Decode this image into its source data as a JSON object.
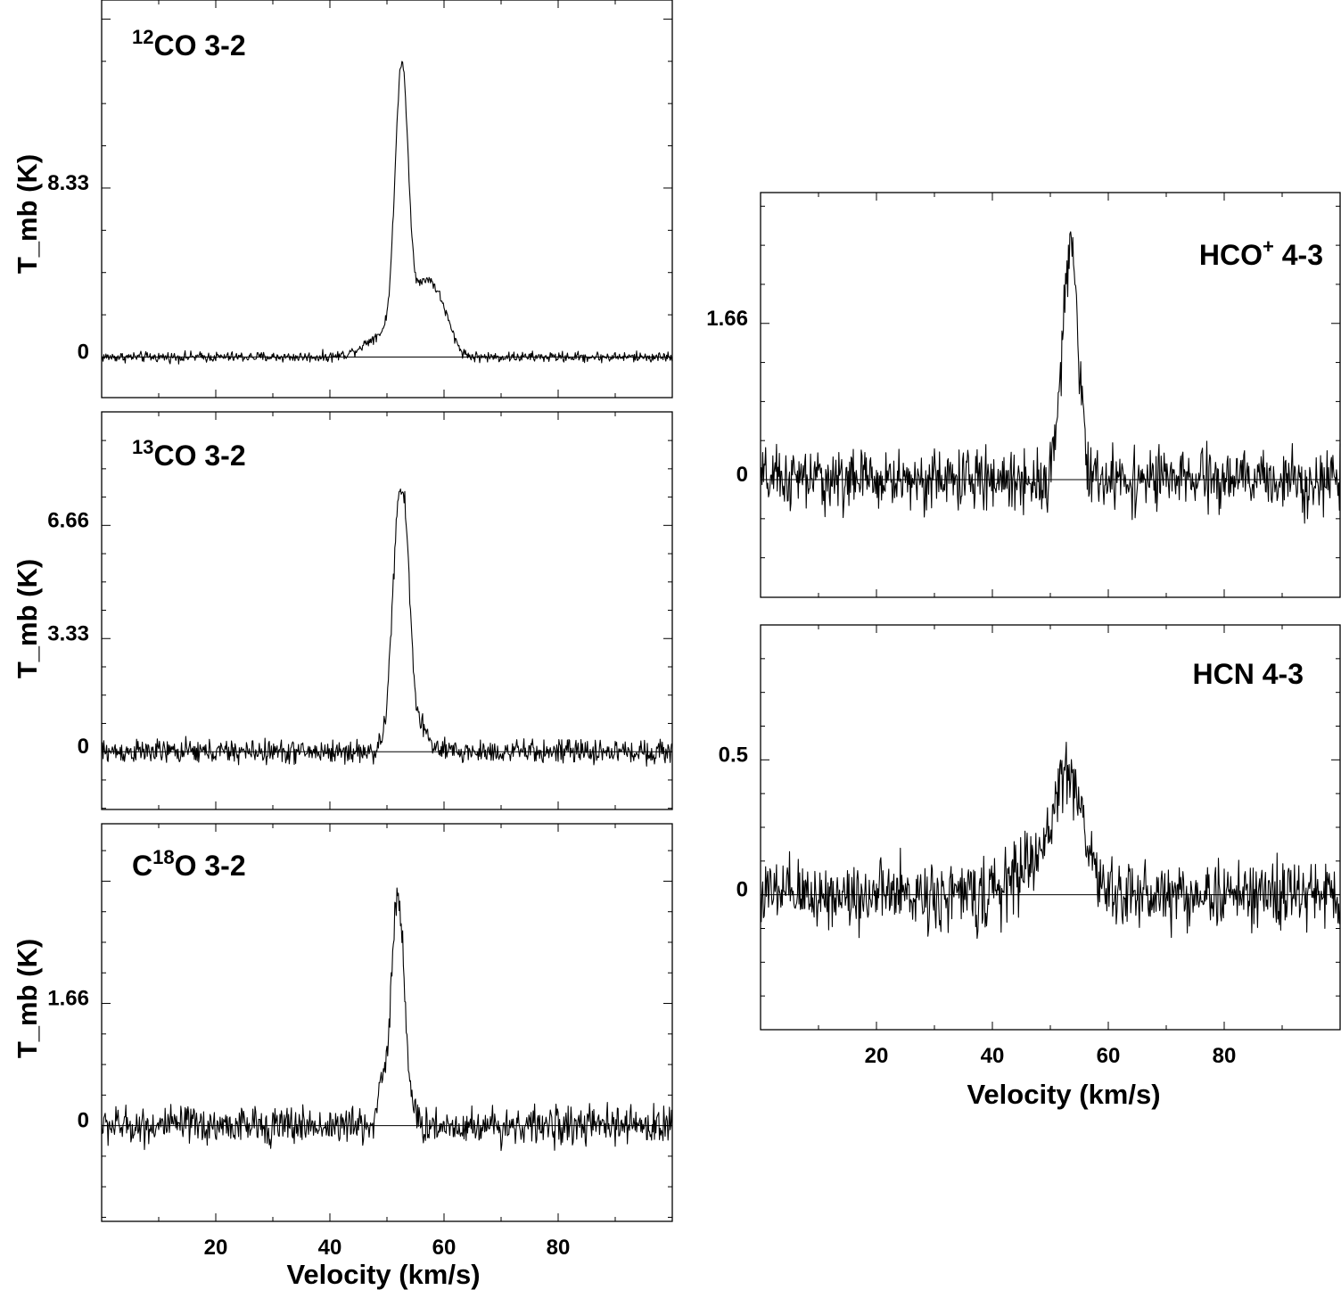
{
  "chart_data": [
    {
      "type": "line",
      "panel_label": {
        "prefix": "",
        "sup": "12",
        "main": "CO 3-2"
      },
      "ylabel": "T_mb (K)",
      "xlabel": "",
      "xlim": [
        0,
        100
      ],
      "ylim": [
        -2.0,
        17.6
      ],
      "y_ticks": [
        0,
        8.33
      ],
      "y_tick_labels": [
        "0",
        "8.33"
      ],
      "x_ticks": [
        20,
        40,
        60,
        80
      ],
      "x_tick_labels": [
        "",
        "",
        "",
        ""
      ],
      "noise": 0.22,
      "components": [
        {
          "center": 52.6,
          "sigma": 1.15,
          "amp": 13.5
        },
        {
          "center": 56.2,
          "sigma": 1.6,
          "amp": 2.4
        },
        {
          "center": 59.0,
          "sigma": 2.0,
          "amp": 2.6
        },
        {
          "center": 50.0,
          "sigma": 3.5,
          "amp": 1.2
        }
      ],
      "series": [
        {
          "x_range": [
            0,
            100
          ],
          "peak_velocity": 52.6,
          "peak_intensity": 13.5
        }
      ]
    },
    {
      "type": "line",
      "panel_label": {
        "prefix": "",
        "sup": "13",
        "main": "CO 3-2"
      },
      "ylabel": "T_mb (K)",
      "xlabel": "",
      "xlim": [
        0,
        100
      ],
      "ylim": [
        -1.7,
        10.0
      ],
      "y_ticks": [
        0,
        3.33,
        6.66
      ],
      "y_tick_labels": [
        "0",
        "3.33",
        "6.66"
      ],
      "x_ticks": [
        20,
        40,
        60,
        80
      ],
      "x_tick_labels": [
        "",
        "",
        "",
        ""
      ],
      "noise": 0.3,
      "components": [
        {
          "center": 52.3,
          "sigma": 1.3,
          "amp": 7.5
        },
        {
          "center": 53.6,
          "sigma": 0.6,
          "amp": 1.2
        },
        {
          "center": 55.5,
          "sigma": 1.5,
          "amp": 0.8
        }
      ],
      "series": [
        {
          "x_range": [
            0,
            100
          ],
          "peak_velocity": 53.7,
          "peak_intensity": 8.6
        }
      ]
    },
    {
      "type": "line",
      "panel_label": {
        "prefix": "C",
        "sup": "18",
        "main": "O 3-2"
      },
      "ylabel": "T_mb (K)",
      "xlabel": "Velocity (km/s)",
      "xlim": [
        0,
        100
      ],
      "ylim": [
        -1.3,
        4.1
      ],
      "y_ticks": [
        0,
        1.66
      ],
      "y_tick_labels": [
        "0",
        "1.66"
      ],
      "x_ticks": [
        20,
        40,
        60,
        80
      ],
      "x_tick_labels": [
        "20",
        "40",
        "60",
        "80"
      ],
      "noise": 0.22,
      "components": [
        {
          "center": 51.9,
          "sigma": 1.2,
          "amp": 3.1
        },
        {
          "center": 49.0,
          "sigma": 0.6,
          "amp": 0.5
        }
      ],
      "series": [
        {
          "x_range": [
            0,
            100
          ],
          "peak_velocity": 52.0,
          "peak_intensity": 3.1
        }
      ]
    },
    {
      "type": "line",
      "panel_label": {
        "prefix": "HCO",
        "sup": "+",
        "main": " 4-3"
      },
      "ylabel": "",
      "xlabel": "",
      "xlim": [
        0,
        100
      ],
      "ylim": [
        -1.25,
        3.05
      ],
      "y_ticks": [
        0,
        1.66
      ],
      "y_tick_labels": [
        "0",
        "1.66"
      ],
      "x_ticks": [
        20,
        40,
        60,
        80
      ],
      "x_tick_labels": [
        "",
        "",
        "",
        ""
      ],
      "noise": 0.28,
      "components": [
        {
          "center": 53.6,
          "sigma": 1.3,
          "amp": 2.25
        },
        {
          "center": 52.0,
          "sigma": 1.0,
          "amp": 0.4
        }
      ],
      "series": [
        {
          "x_range": [
            0,
            100
          ],
          "peak_velocity": 53.8,
          "peak_intensity": 2.5
        }
      ]
    },
    {
      "type": "line",
      "panel_label": {
        "prefix": "HCN",
        "sup": "",
        "main": " 4-3"
      },
      "ylabel": "",
      "xlabel": "Velocity (km/s)",
      "xlim": [
        0,
        100
      ],
      "ylim": [
        -0.5,
        1.0
      ],
      "y_ticks": [
        0,
        0.5
      ],
      "y_tick_labels": [
        "0",
        "0.5"
      ],
      "x_ticks": [
        20,
        40,
        60,
        80
      ],
      "x_tick_labels": [
        "20",
        "40",
        "60",
        "80"
      ],
      "noise": 0.11,
      "components": [
        {
          "center": 53.0,
          "sigma": 2.6,
          "amp": 0.46
        },
        {
          "center": 46.0,
          "sigma": 2.5,
          "amp": 0.1
        }
      ],
      "series": [
        {
          "x_range": [
            0,
            100
          ],
          "peak_velocity": 54.0,
          "peak_intensity": 0.65
        }
      ]
    }
  ]
}
